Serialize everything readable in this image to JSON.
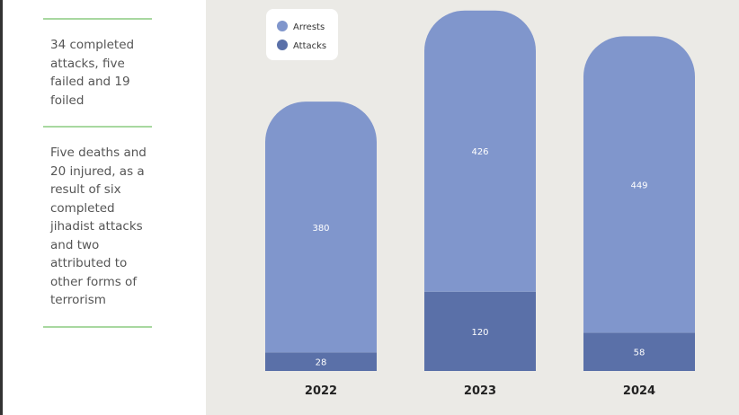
{
  "sidebar": {
    "notes": [
      "34 completed attacks, five failed and 19 foiled",
      "Five deaths and 20 injured, as a result of six completed jihadist attacks and two attributed to other forms of terrorism"
    ]
  },
  "chart_data": {
    "type": "stacked-bar",
    "categories": [
      "2022",
      "2023",
      "2024"
    ],
    "series": [
      {
        "name": "Arrests",
        "color": "#8096cc",
        "values": [
          380,
          426,
          449
        ]
      },
      {
        "name": "Attacks",
        "color": "#5a70a8",
        "values": [
          28,
          120,
          58
        ]
      }
    ]
  }
}
